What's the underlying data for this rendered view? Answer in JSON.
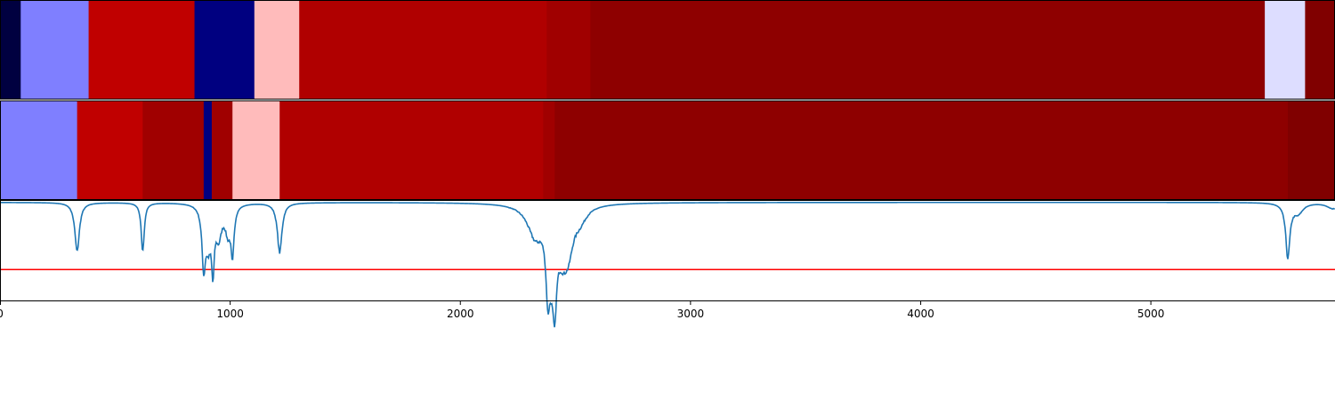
{
  "chart_data": [
    {
      "type": "heatmap",
      "xlim": [
        0,
        5800
      ],
      "segments": [
        {
          "start": 0,
          "end": 90,
          "color": "#000040"
        },
        {
          "start": 90,
          "end": 385,
          "color": "#7f7fff"
        },
        {
          "start": 385,
          "end": 845,
          "color": "#c00000"
        },
        {
          "start": 845,
          "end": 1105,
          "color": "#000080"
        },
        {
          "start": 1105,
          "end": 1300,
          "color": "#ffbbbb"
        },
        {
          "start": 1300,
          "end": 2375,
          "color": "#b00000"
        },
        {
          "start": 2375,
          "end": 2565,
          "color": "#a00000"
        },
        {
          "start": 2565,
          "end": 5495,
          "color": "#8e0000"
        },
        {
          "start": 5495,
          "end": 5670,
          "color": "#ddddff"
        },
        {
          "start": 5670,
          "end": 5800,
          "color": "#800000"
        }
      ]
    },
    {
      "type": "heatmap",
      "xlim": [
        0,
        5800
      ],
      "segments": [
        {
          "start": 0,
          "end": 335,
          "color": "#7f7fff"
        },
        {
          "start": 335,
          "end": 620,
          "color": "#c00000"
        },
        {
          "start": 620,
          "end": 885,
          "color": "#a00000"
        },
        {
          "start": 885,
          "end": 920,
          "color": "#000080"
        },
        {
          "start": 920,
          "end": 1010,
          "color": "#a00000"
        },
        {
          "start": 1010,
          "end": 1215,
          "color": "#ffbbbb"
        },
        {
          "start": 1215,
          "end": 2360,
          "color": "#b00000"
        },
        {
          "start": 2360,
          "end": 2410,
          "color": "#a00000"
        },
        {
          "start": 2410,
          "end": 5595,
          "color": "#8e0000"
        },
        {
          "start": 5595,
          "end": 5800,
          "color": "#800000"
        }
      ]
    },
    {
      "type": "line",
      "xlim": [
        0,
        5800
      ],
      "ylim": [
        0,
        1
      ],
      "xticks": [
        0,
        1000,
        2000,
        3000,
        4000,
        5000
      ],
      "xtick_labels": [
        "0",
        "1000",
        "2000",
        "3000",
        "4000",
        "5000"
      ],
      "threshold": 0.31,
      "threshold_color": "#ff0000",
      "line_color": "#1f77b4",
      "baseline": 0.985,
      "dips": [
        {
          "center": 335,
          "depth": 0.49,
          "width": 12
        },
        {
          "center": 620,
          "depth": 0.49,
          "width": 8
        },
        {
          "center": 885,
          "depth": 0.58,
          "width": 9
        },
        {
          "center": 905,
          "depth": 0.35,
          "width": 14
        },
        {
          "center": 925,
          "depth": 0.56,
          "width": 7
        },
        {
          "center": 950,
          "depth": 0.3,
          "width": 16
        },
        {
          "center": 990,
          "depth": 0.25,
          "width": 14
        },
        {
          "center": 1010,
          "depth": 0.48,
          "width": 8
        },
        {
          "center": 1215,
          "depth": 0.5,
          "width": 12
        },
        {
          "center": 2325,
          "depth": 0.3,
          "width": 40
        },
        {
          "center": 2380,
          "depth": 0.6,
          "width": 10
        },
        {
          "center": 2395,
          "depth": 0.4,
          "width": 18
        },
        {
          "center": 2410,
          "depth": 0.68,
          "width": 10
        },
        {
          "center": 2445,
          "depth": 0.4,
          "width": 30
        },
        {
          "center": 2470,
          "depth": 0.3,
          "width": 25
        },
        {
          "center": 2520,
          "depth": 0.12,
          "width": 35
        },
        {
          "center": 5595,
          "depth": 0.54,
          "width": 11
        },
        {
          "center": 5640,
          "depth": 0.1,
          "width": 25
        },
        {
          "center": 5790,
          "depth": 0.06,
          "width": 30
        }
      ]
    }
  ]
}
